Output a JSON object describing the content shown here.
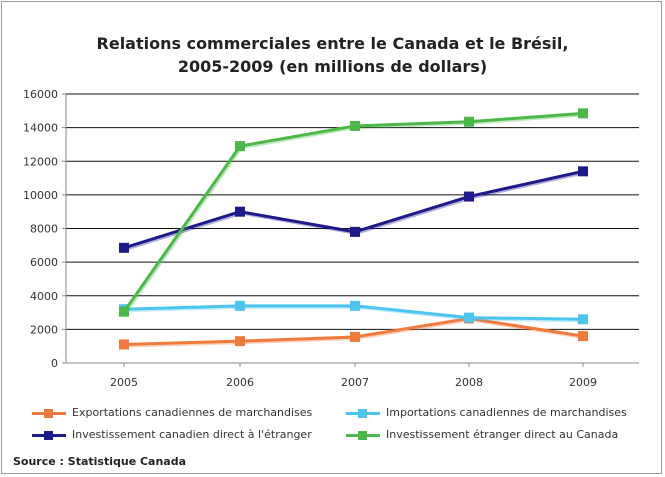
{
  "chart_data": {
    "type": "line",
    "title_line1": "Relations commerciales entre le Canada et le Brésil,",
    "title_line2": "2005-2009 (en millions de dollars)",
    "xlabel": "",
    "ylabel": "",
    "categories": [
      "2005",
      "2006",
      "2007",
      "2008",
      "2009"
    ],
    "ylim": [
      0,
      16000
    ],
    "yticks": [
      0,
      2000,
      4000,
      6000,
      8000,
      10000,
      12000,
      14000,
      16000
    ],
    "ytick_labels": [
      "0",
      "2000",
      "4000",
      "6000",
      "8000",
      "10000",
      "12000",
      "14000",
      "16000"
    ],
    "grid": true,
    "legend_position": "bottom",
    "series": [
      {
        "name": "Exportations canadiennes de marchandises",
        "color": "#f07a3c",
        "values": [
          1100,
          1300,
          1550,
          2650,
          1600
        ]
      },
      {
        "name": "Importations canadiennes de marchandises",
        "color": "#4cc6ef",
        "values": [
          3200,
          3400,
          3400,
          2700,
          2600
        ]
      },
      {
        "name": "Investissement canadien direct à l'étranger",
        "color": "#1e1a8a",
        "values": [
          6850,
          9000,
          7800,
          9900,
          11400
        ]
      },
      {
        "name": "Investissement étranger direct au Canada",
        "color": "#4cb848",
        "values": [
          3050,
          12900,
          14100,
          14350,
          14850
        ]
      }
    ]
  },
  "source": "Source : Statistique Canada"
}
